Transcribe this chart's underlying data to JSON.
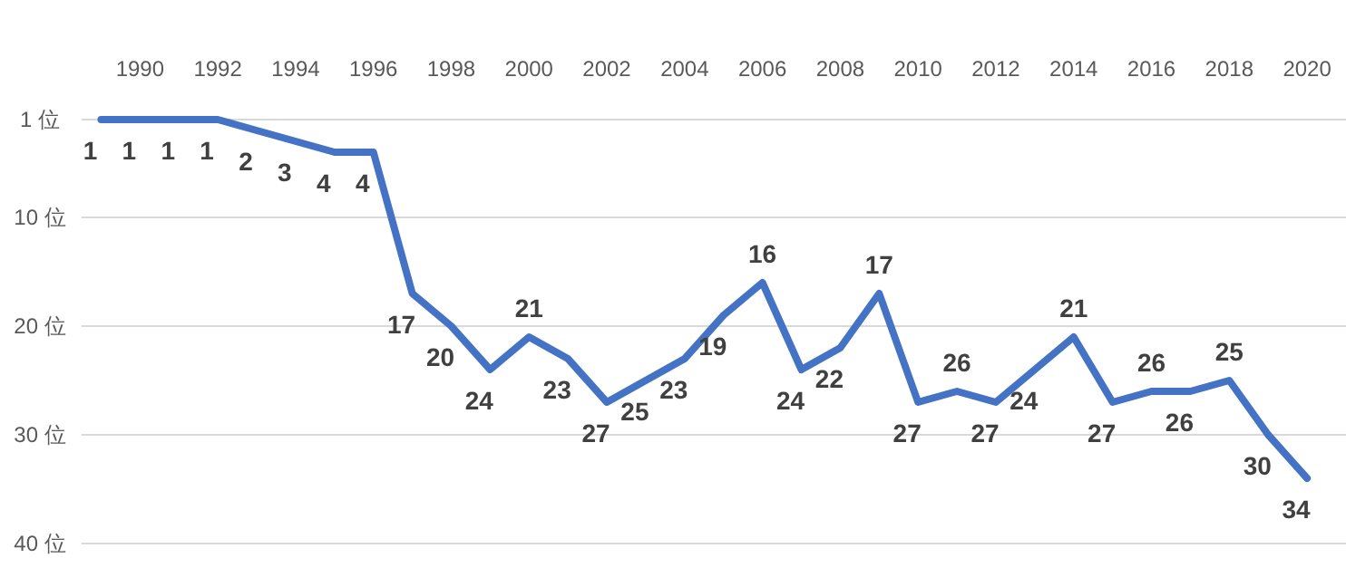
{
  "chart_data": {
    "type": "line",
    "x": [
      1989,
      1990,
      1991,
      1992,
      1993,
      1994,
      1995,
      1996,
      1997,
      1998,
      1999,
      2000,
      2001,
      2002,
      2003,
      2004,
      2005,
      2006,
      2007,
      2008,
      2009,
      2010,
      2011,
      2012,
      2013,
      2014,
      2015,
      2016,
      2017,
      2018,
      2019,
      2020
    ],
    "values": [
      1,
      1,
      1,
      1,
      2,
      3,
      4,
      4,
      17,
      20,
      24,
      21,
      23,
      27,
      25,
      23,
      19,
      16,
      24,
      22,
      17,
      27,
      26,
      27,
      24,
      21,
      27,
      26,
      26,
      25,
      30,
      34
    ],
    "color": "#4472c4",
    "xlim": [
      1988.5,
      2021
    ],
    "xticks": [
      1990,
      1992,
      1994,
      1996,
      1998,
      2000,
      2002,
      2004,
      2006,
      2008,
      2010,
      2012,
      2014,
      2016,
      2018,
      2020
    ],
    "ylim": [
      40,
      1
    ],
    "yticks": [
      {
        "value": 1,
        "label": "1 位"
      },
      {
        "value": 10,
        "label": "10 位"
      },
      {
        "value": 20,
        "label": "20 位"
      },
      {
        "value": 30,
        "label": "30 位"
      },
      {
        "value": 40,
        "label": "40 位"
      }
    ],
    "grid": "y",
    "data_labels": true
  }
}
